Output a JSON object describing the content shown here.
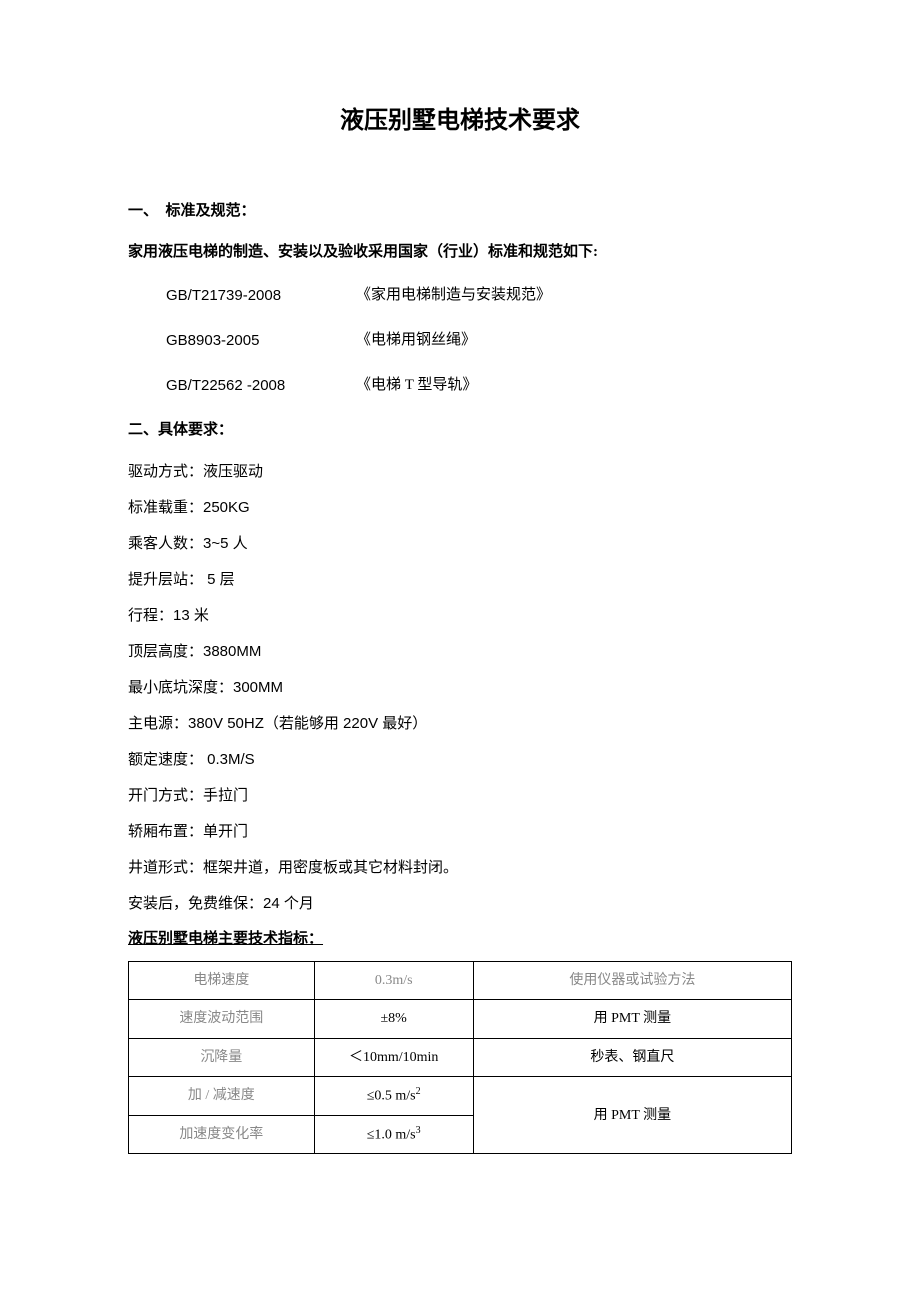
{
  "title": "液压别墅电梯技术要求",
  "section1": {
    "heading": "一、　标准及规范：",
    "subheading": "家用液压电梯的制造、安装以及验收采用国家（行业）标准和规范如下:",
    "standards": [
      {
        "code": "GB/T21739-2008",
        "name": "《家用电梯制造与安装规范》"
      },
      {
        "code": "GB8903-2005",
        "name": "《电梯用钢丝绳》"
      },
      {
        "code": "GB/T22562 -2008",
        "name": "《电梯 T 型导轨》"
      }
    ]
  },
  "section2": {
    "heading": "二、具体要求：",
    "specs": [
      "驱动方式：液压驱动",
      "标准载重：250KG",
      "乘客人数：3~5 人",
      "提升层站： 5 层",
      "行程：13 米",
      "顶层高度：3880MM",
      "最小底坑深度：300MM",
      "主电源：380V 50HZ（若能够用 220V 最好）",
      "额定速度： 0.3M/S",
      "开门方式：手拉门",
      "轿厢布置：单开门",
      "井道形式：框架井道，用密度板或其它材料封闭。",
      "安装后，免费维保：24 个月"
    ],
    "table_title": "液压别墅电梯主要技术指标：",
    "table": {
      "header": {
        "c1": "电梯速度",
        "c2": "0.3m/s",
        "c3": "使用仪器或试验方法"
      },
      "rows": [
        {
          "c1": "速度波动范围",
          "c2": "±8%",
          "c3": "用 PMT 测量"
        },
        {
          "c1": "沉降量",
          "c2": "＜10mm/10min",
          "c3": "秒表、钢直尺"
        },
        {
          "c1": "加 / 减速度",
          "c2_pre": "≤0.5 m/s",
          "c2_sup": "2",
          "c3": "用 PMT 测量",
          "merge_down": true
        },
        {
          "c1": "加速度变化率",
          "c2_pre": "≤1.0 m/s",
          "c2_sup": "3"
        }
      ]
    }
  },
  "colors": {
    "text": "#000000",
    "muted": "#888888",
    "border": "#000000",
    "background": "#ffffff"
  }
}
